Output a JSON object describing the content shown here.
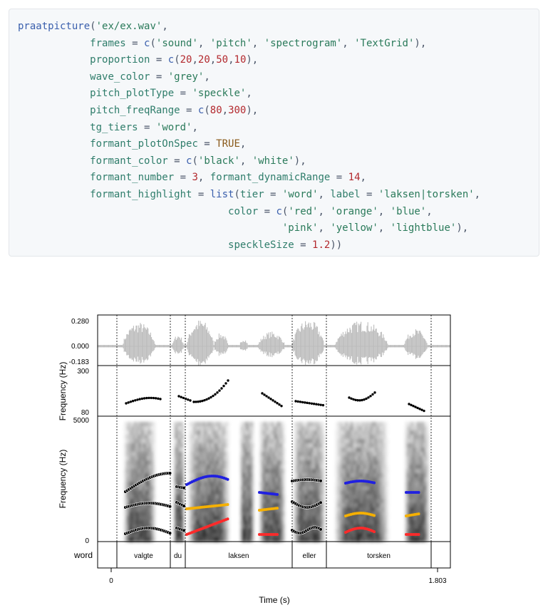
{
  "code": {
    "lines": [
      [
        [
          "fn",
          "praatpicture"
        ],
        [
          "p",
          "("
        ],
        [
          "str",
          "'ex/ex.wav'"
        ],
        [
          "p",
          ","
        ]
      ],
      [
        [
          "p",
          "            "
        ],
        [
          "arg",
          "frames"
        ],
        [
          "p",
          " = "
        ],
        [
          "fn",
          "c"
        ],
        [
          "p",
          "("
        ],
        [
          "str",
          "'sound'"
        ],
        [
          "p",
          ", "
        ],
        [
          "str",
          "'pitch'"
        ],
        [
          "p",
          ", "
        ],
        [
          "str",
          "'spectrogram'"
        ],
        [
          "p",
          ", "
        ],
        [
          "str",
          "'TextGrid'"
        ],
        [
          "p",
          "),"
        ]
      ],
      [
        [
          "p",
          "            "
        ],
        [
          "arg",
          "proportion"
        ],
        [
          "p",
          " = "
        ],
        [
          "fn",
          "c"
        ],
        [
          "p",
          "("
        ],
        [
          "num",
          "20"
        ],
        [
          "p",
          ","
        ],
        [
          "num",
          "20"
        ],
        [
          "p",
          ","
        ],
        [
          "num",
          "50"
        ],
        [
          "p",
          ","
        ],
        [
          "num",
          "10"
        ],
        [
          "p",
          "),"
        ]
      ],
      [
        [
          "p",
          "            "
        ],
        [
          "arg",
          "wave_color"
        ],
        [
          "p",
          " = "
        ],
        [
          "str",
          "'grey'"
        ],
        [
          "p",
          ","
        ]
      ],
      [
        [
          "p",
          "            "
        ],
        [
          "arg",
          "pitch_plotType"
        ],
        [
          "p",
          " = "
        ],
        [
          "str",
          "'speckle'"
        ],
        [
          "p",
          ","
        ]
      ],
      [
        [
          "p",
          "            "
        ],
        [
          "arg",
          "pitch_freqRange"
        ],
        [
          "p",
          " = "
        ],
        [
          "fn",
          "c"
        ],
        [
          "p",
          "("
        ],
        [
          "num",
          "80"
        ],
        [
          "p",
          ","
        ],
        [
          "num",
          "300"
        ],
        [
          "p",
          "),"
        ]
      ],
      [
        [
          "p",
          "            "
        ],
        [
          "arg",
          "tg_tiers"
        ],
        [
          "p",
          " = "
        ],
        [
          "str",
          "'word'"
        ],
        [
          "p",
          ","
        ]
      ],
      [
        [
          "p",
          "            "
        ],
        [
          "arg",
          "formant_plotOnSpec"
        ],
        [
          "p",
          " = "
        ],
        [
          "kw",
          "TRUE"
        ],
        [
          "p",
          ","
        ]
      ],
      [
        [
          "p",
          "            "
        ],
        [
          "arg",
          "formant_color"
        ],
        [
          "p",
          " = "
        ],
        [
          "fn",
          "c"
        ],
        [
          "p",
          "("
        ],
        [
          "str",
          "'black'"
        ],
        [
          "p",
          ", "
        ],
        [
          "str",
          "'white'"
        ],
        [
          "p",
          "),"
        ]
      ],
      [
        [
          "p",
          "            "
        ],
        [
          "arg",
          "formant_number"
        ],
        [
          "p",
          " = "
        ],
        [
          "num",
          "3"
        ],
        [
          "p",
          ", "
        ],
        [
          "arg",
          "formant_dynamicRange"
        ],
        [
          "p",
          " = "
        ],
        [
          "num",
          "14"
        ],
        [
          "p",
          ","
        ]
      ],
      [
        [
          "p",
          "            "
        ],
        [
          "arg",
          "formant_highlight"
        ],
        [
          "p",
          " = "
        ],
        [
          "fn",
          "list"
        ],
        [
          "p",
          "("
        ],
        [
          "arg",
          "tier"
        ],
        [
          "p",
          " = "
        ],
        [
          "str",
          "'word'"
        ],
        [
          "p",
          ", "
        ],
        [
          "arg",
          "label"
        ],
        [
          "p",
          " = "
        ],
        [
          "str",
          "'laksen|torsken'"
        ],
        [
          "p",
          ","
        ]
      ],
      [
        [
          "p",
          "                                   "
        ],
        [
          "arg",
          "color"
        ],
        [
          "p",
          " = "
        ],
        [
          "fn",
          "c"
        ],
        [
          "p",
          "("
        ],
        [
          "str",
          "'red'"
        ],
        [
          "p",
          ", "
        ],
        [
          "str",
          "'orange'"
        ],
        [
          "p",
          ", "
        ],
        [
          "str",
          "'blue'"
        ],
        [
          "p",
          ","
        ]
      ],
      [
        [
          "p",
          "                                            "
        ],
        [
          "str",
          "'pink'"
        ],
        [
          "p",
          ", "
        ],
        [
          "str",
          "'yellow'"
        ],
        [
          "p",
          ", "
        ],
        [
          "str",
          "'lightblue'"
        ],
        [
          "p",
          "),"
        ]
      ],
      [
        [
          "p",
          "                                   "
        ],
        [
          "arg",
          "speckleSize"
        ],
        [
          "p",
          " = "
        ],
        [
          "num",
          "1.2"
        ],
        [
          "p",
          "))"
        ]
      ]
    ]
  },
  "plot": {
    "wave": {
      "max": "0.280",
      "zero": "0.000",
      "min": "-0.183"
    },
    "pitch": {
      "ylabel": "Frequency (Hz)",
      "max": "300",
      "min": "80"
    },
    "spectrogram": {
      "ylabel": "Frequency (Hz)",
      "max": "5000",
      "min": "0"
    },
    "tier": {
      "name": "word",
      "words": [
        "valgte",
        "du",
        "laksen",
        "eller",
        "torsken"
      ]
    },
    "xaxis": {
      "label": "Time (s)",
      "start": "0",
      "end": "1.803"
    },
    "colors": {
      "wave": "#bdbdbd",
      "f1_highlight": "#ff2a2a",
      "f2_highlight": "#f5b000",
      "f3_highlight": "#2020e0"
    }
  }
}
